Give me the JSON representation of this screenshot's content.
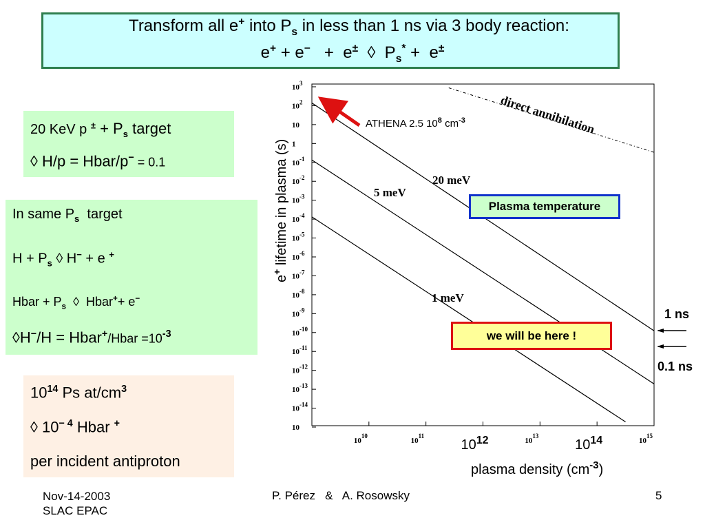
{
  "title": {
    "line1": {
      "prefix": "Transform all e",
      "sup1": "+",
      "mid": " into P",
      "sub1": "s",
      "suffix": " in less than 1 ns via 3 body reaction:"
    },
    "line2": {
      "p1": "e",
      "s1": "+",
      "p2": " + e",
      "s2": "−",
      "p3": "   +  e",
      "s3": "±",
      "p4": "  ◊  P",
      "sub": "s",
      "s4": "*",
      "p5": " +  e",
      "s5": "±"
    }
  },
  "box1": {
    "line1": {
      "a": "20 KeV p ",
      "sup": "±",
      "b": " + P",
      "sub": "s",
      "c": " target"
    },
    "line2": {
      "a": "◊ H/p = Hbar/p",
      "sup": "−",
      "b": " = 0.1"
    }
  },
  "box2": {
    "line1": {
      "a": "In same P",
      "sub": "s",
      "b": "  target"
    },
    "line2": {
      "a": "H + P",
      "sub": "s",
      "b": " ◊ H",
      "sup1": "−",
      "c": " + e ",
      "sup2": "+"
    },
    "line3": {
      "a": "Hbar + P",
      "sub": "s",
      "b": "  ◊  Hbar",
      "sup1": "+",
      "c": "+ e",
      "sup2": "−"
    },
    "line4": {
      "a": "◊H",
      "sup1": "−",
      "b": "/H = Hbar",
      "sup2": "+",
      "c": "/Hbar =10",
      "sup3": "-3"
    }
  },
  "box3": {
    "line1": {
      "a": "10",
      "sup1": "14",
      "b": " Ps at/cm",
      "sup2": "3"
    },
    "line2": {
      "a": "◊ 10",
      "sup1": "− 4",
      "b": " Hbar ",
      "sup2": "+"
    },
    "line3": "per incident antiproton"
  },
  "chart_data": {
    "type": "line",
    "ylabel": {
      "a": "e",
      "sup": "+",
      "b": " lifetime in plasma (s)"
    },
    "xlabel": {
      "a": "plasma density (cm",
      "sup": "-3",
      "b": ")"
    },
    "xlog": true,
    "ylog": true,
    "xlim_exp": [
      9,
      15
    ],
    "ylim_exp": [
      -15,
      3
    ],
    "x_ticks": [
      {
        "exp": 10,
        "base": "10",
        "sup": "10",
        "big": false
      },
      {
        "exp": 11,
        "base": "10",
        "sup": "11",
        "big": false
      },
      {
        "exp": 12,
        "base": "10",
        "sup": "12",
        "big": true
      },
      {
        "exp": 13,
        "base": "10",
        "sup": "13",
        "big": false
      },
      {
        "exp": 14,
        "base": "10",
        "sup": "14",
        "big": true
      },
      {
        "exp": 15,
        "base": "10",
        "sup": "15",
        "big": false
      }
    ],
    "y_ticks": [
      {
        "base": "10",
        "sup": "3"
      },
      {
        "base": "10",
        "sup": "2"
      },
      {
        "base": "10",
        "sup": ""
      },
      {
        "base": "1",
        "sup": ""
      },
      {
        "base": "10",
        "sup": "-1"
      },
      {
        "base": "10",
        "sup": "-2"
      },
      {
        "base": "10",
        "sup": "-3"
      },
      {
        "base": "10",
        "sup": "-4"
      },
      {
        "base": "10",
        "sup": "-5"
      },
      {
        "base": "10",
        "sup": "-6"
      },
      {
        "base": "10",
        "sup": "-7"
      },
      {
        "base": "10",
        "sup": "-8"
      },
      {
        "base": "10",
        "sup": "-9"
      },
      {
        "base": "10",
        "sup": "-10"
      },
      {
        "base": "10",
        "sup": "-11"
      },
      {
        "base": "10",
        "sup": "-12"
      },
      {
        "base": "10",
        "sup": "-13"
      },
      {
        "base": "10",
        "sup": "-14"
      },
      {
        "base": "10",
        "sup": ""
      }
    ],
    "series": [
      {
        "name": "20 meV",
        "x_exp": [
          9,
          15
        ],
        "y_exp": [
          2.0,
          -10.0
        ]
      },
      {
        "name": "5 meV",
        "x_exp": [
          9,
          15
        ],
        "y_exp": [
          -1.0,
          -12.8
        ]
      },
      {
        "name": "1 meV",
        "x_exp": [
          9,
          14.5
        ],
        "y_exp": [
          -4.0,
          -14.8
        ]
      },
      {
        "name": "direct annihilation",
        "x_exp": [
          11.4,
          15
        ],
        "y_exp": [
          2.8,
          -0.6
        ],
        "style": "dash-dot"
      }
    ],
    "annotations": {
      "athena": {
        "a": "ATHENA 2.5 10",
        "sup1": "8",
        "b": " cm",
        "sup2": "-3"
      },
      "direct": "direct annihilation",
      "legend_temp": "Plasma temperature",
      "here": "we will be here !",
      "ns1": "1 ns",
      "ns01": "0.1 ns"
    },
    "colors": {
      "arrow": "#dd1111",
      "plasma_box_border": "#1133cc",
      "here_box_border": "#dd1111"
    }
  },
  "footer": {
    "date": "Nov-14-2003",
    "venue": "SLAC EPAC",
    "authors": "P. Pérez   &   A. Rosowsky",
    "page": "5"
  }
}
